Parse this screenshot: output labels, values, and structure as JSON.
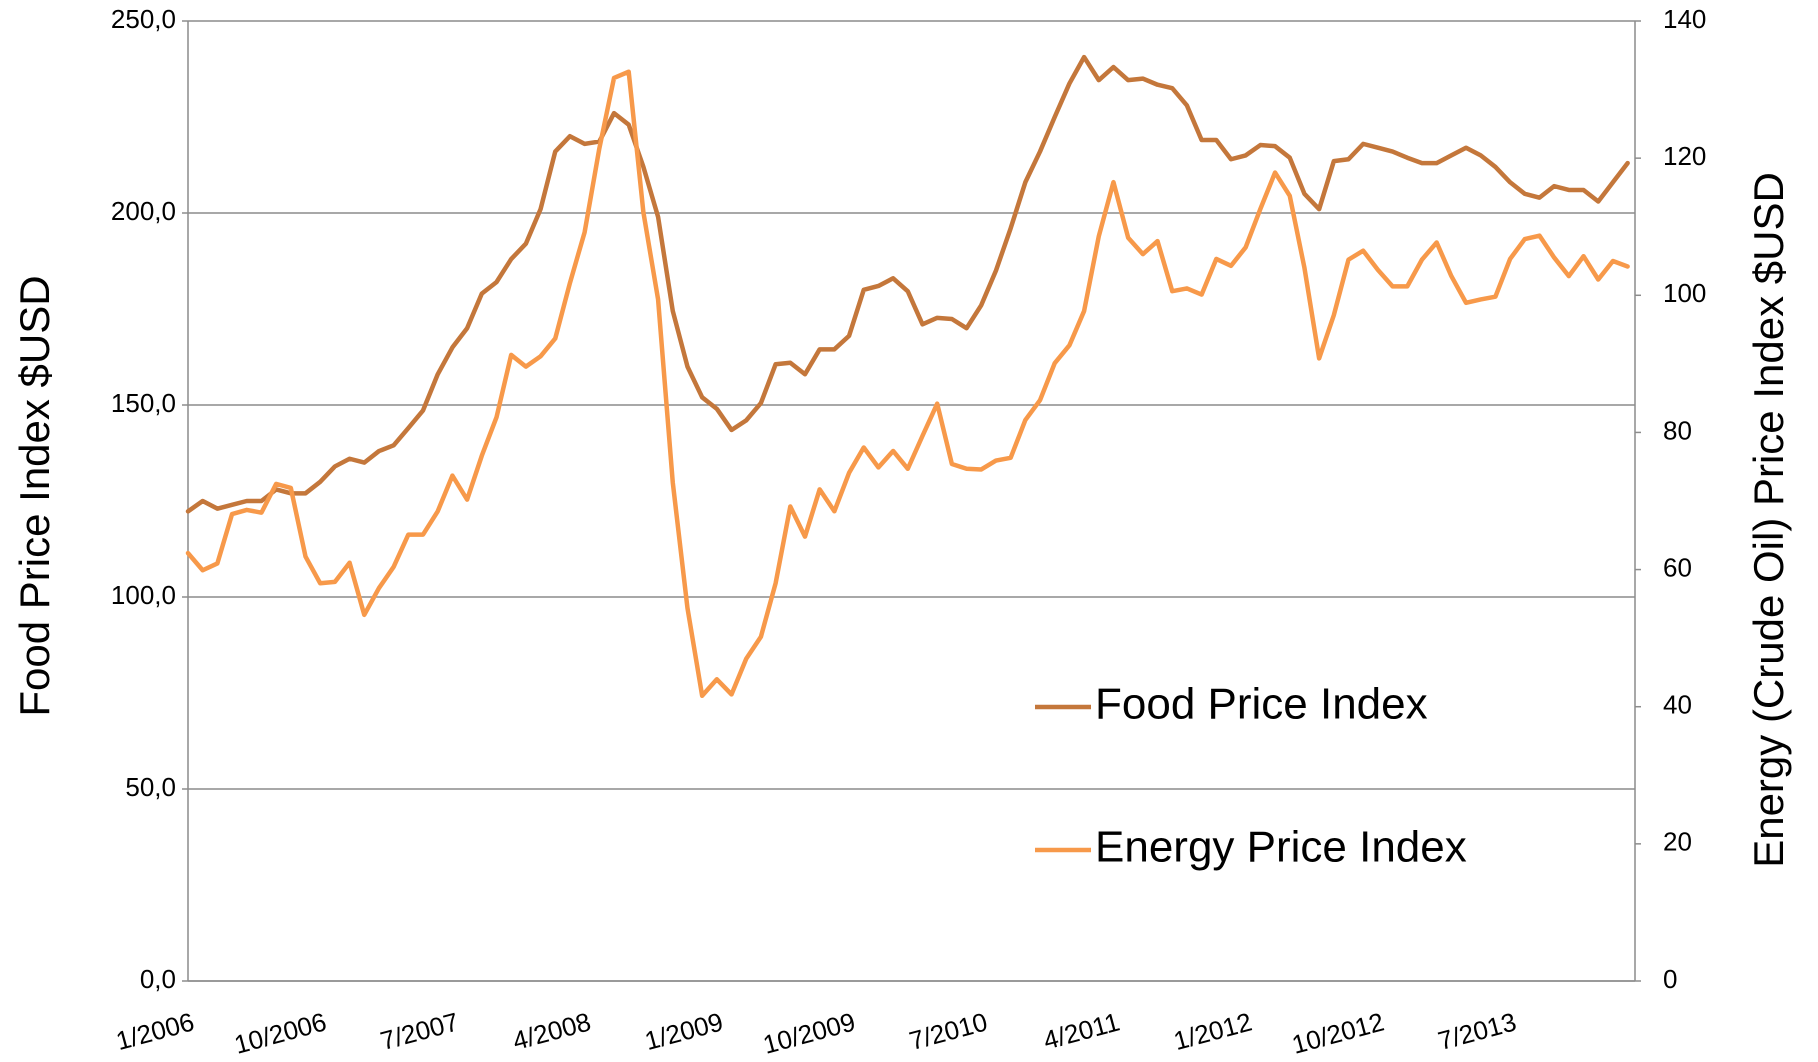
{
  "chart_data": {
    "type": "line",
    "y_label": "Food Price Index  $USD",
    "y2_label": "Energy (Crude Oil) Price Index $USD",
    "categories": [
      "1/2006",
      null,
      null,
      null,
      null,
      null,
      null,
      null,
      null,
      "10/2006",
      null,
      null,
      null,
      null,
      null,
      null,
      null,
      null,
      "7/2007",
      null,
      null,
      null,
      null,
      null,
      null,
      null,
      null,
      "4/2008",
      null,
      null,
      null,
      null,
      null,
      null,
      null,
      null,
      "1/2009",
      null,
      null,
      null,
      null,
      null,
      null,
      null,
      null,
      "10/2009",
      null,
      null,
      null,
      null,
      null,
      null,
      null,
      null,
      "7/2010",
      null,
      null,
      null,
      null,
      null,
      null,
      null,
      null,
      "4/2011",
      null,
      null,
      null,
      null,
      null,
      null,
      null,
      null,
      "1/2012",
      null,
      null,
      null,
      null,
      null,
      null,
      null,
      null,
      "10/2012",
      null,
      null,
      null,
      null,
      null,
      null,
      null,
      null,
      "7/2013",
      null,
      null,
      null,
      null,
      null,
      null,
      null,
      null
    ],
    "series": [
      {
        "name": "Food Price Index",
        "color": "#c4773b",
        "axis": "y",
        "values": [
          122.3,
          125,
          123,
          124,
          125,
          125,
          128,
          127,
          127,
          130,
          134,
          136,
          135,
          138,
          139.5,
          144,
          148.6,
          158,
          165,
          170,
          179,
          182,
          188,
          192,
          201,
          216,
          220,
          218,
          218.6,
          226,
          223,
          212,
          199,
          174.5,
          160,
          152,
          149,
          143.5,
          146,
          150.5,
          160.6,
          161,
          158,
          164.5,
          164.5,
          168,
          180,
          181,
          183,
          179.6,
          171,
          172.7,
          172.4,
          170,
          176,
          185,
          196,
          208,
          216,
          225,
          233.7,
          240.6,
          234.6,
          238,
          234.6,
          235,
          233.4,
          232.5,
          228,
          219,
          219,
          214,
          215,
          217.7,
          217.4,
          214.4,
          205,
          201,
          213.5,
          214,
          218,
          217,
          216,
          214.4,
          213,
          213,
          215,
          217,
          215,
          212,
          208,
          205,
          204,
          207,
          206,
          206,
          203,
          208,
          213
        ]
      },
      {
        "name": "Energy Price Index",
        "color": "#f7994a",
        "axis": "y2",
        "values": [
          62.4,
          59.9,
          60.9,
          68.1,
          68.7,
          68.3,
          72.5,
          71.9,
          61.9,
          58,
          58.2,
          61,
          53.4,
          57.3,
          60.4,
          65.1,
          65.1,
          68.5,
          73.7,
          70.2,
          76.6,
          82.2,
          91.3,
          89.6,
          91.1,
          93.7,
          101.8,
          109.2,
          121.4,
          131.7,
          132.6,
          112.1,
          99.4,
          72.7,
          54.4,
          41.6,
          44,
          41.8,
          47,
          50.2,
          58,
          69.2,
          64.8,
          71.7,
          68.5,
          74.1,
          77.8,
          74.9,
          77.3,
          74.7,
          79.5,
          84.2,
          75.4,
          74.7,
          74.6,
          75.9,
          76.3,
          81.8,
          84.7,
          90.1,
          92.7,
          97.7,
          108.6,
          116.5,
          108.4,
          106,
          107.9,
          100.6,
          101,
          100.1,
          105.3,
          104.3,
          107,
          112.6,
          117.9,
          114.5,
          104,
          90.8,
          97.1,
          105.2,
          106.5,
          103.7,
          101.3,
          101.3,
          105.2,
          107.7,
          102.8,
          98.9,
          99.4,
          99.8,
          105.3,
          108.2,
          108.7,
          105.5,
          102.8,
          105.7,
          102.3,
          105,
          104.2
        ]
      }
    ],
    "ylim": [
      0,
      250
    ],
    "yticks": [
      {
        "value": 0,
        "label": "0,0"
      },
      {
        "value": 50,
        "label": "50,0"
      },
      {
        "value": 100,
        "label": "100,0"
      },
      {
        "value": 150,
        "label": "150,0"
      },
      {
        "value": 200,
        "label": "200,0"
      },
      {
        "value": 250,
        "label": "250,0"
      }
    ],
    "y2lim": [
      0,
      140
    ],
    "y2ticks": [
      0,
      20,
      40,
      60,
      80,
      100,
      120,
      140
    ],
    "grid": true,
    "legend": "lower right"
  }
}
